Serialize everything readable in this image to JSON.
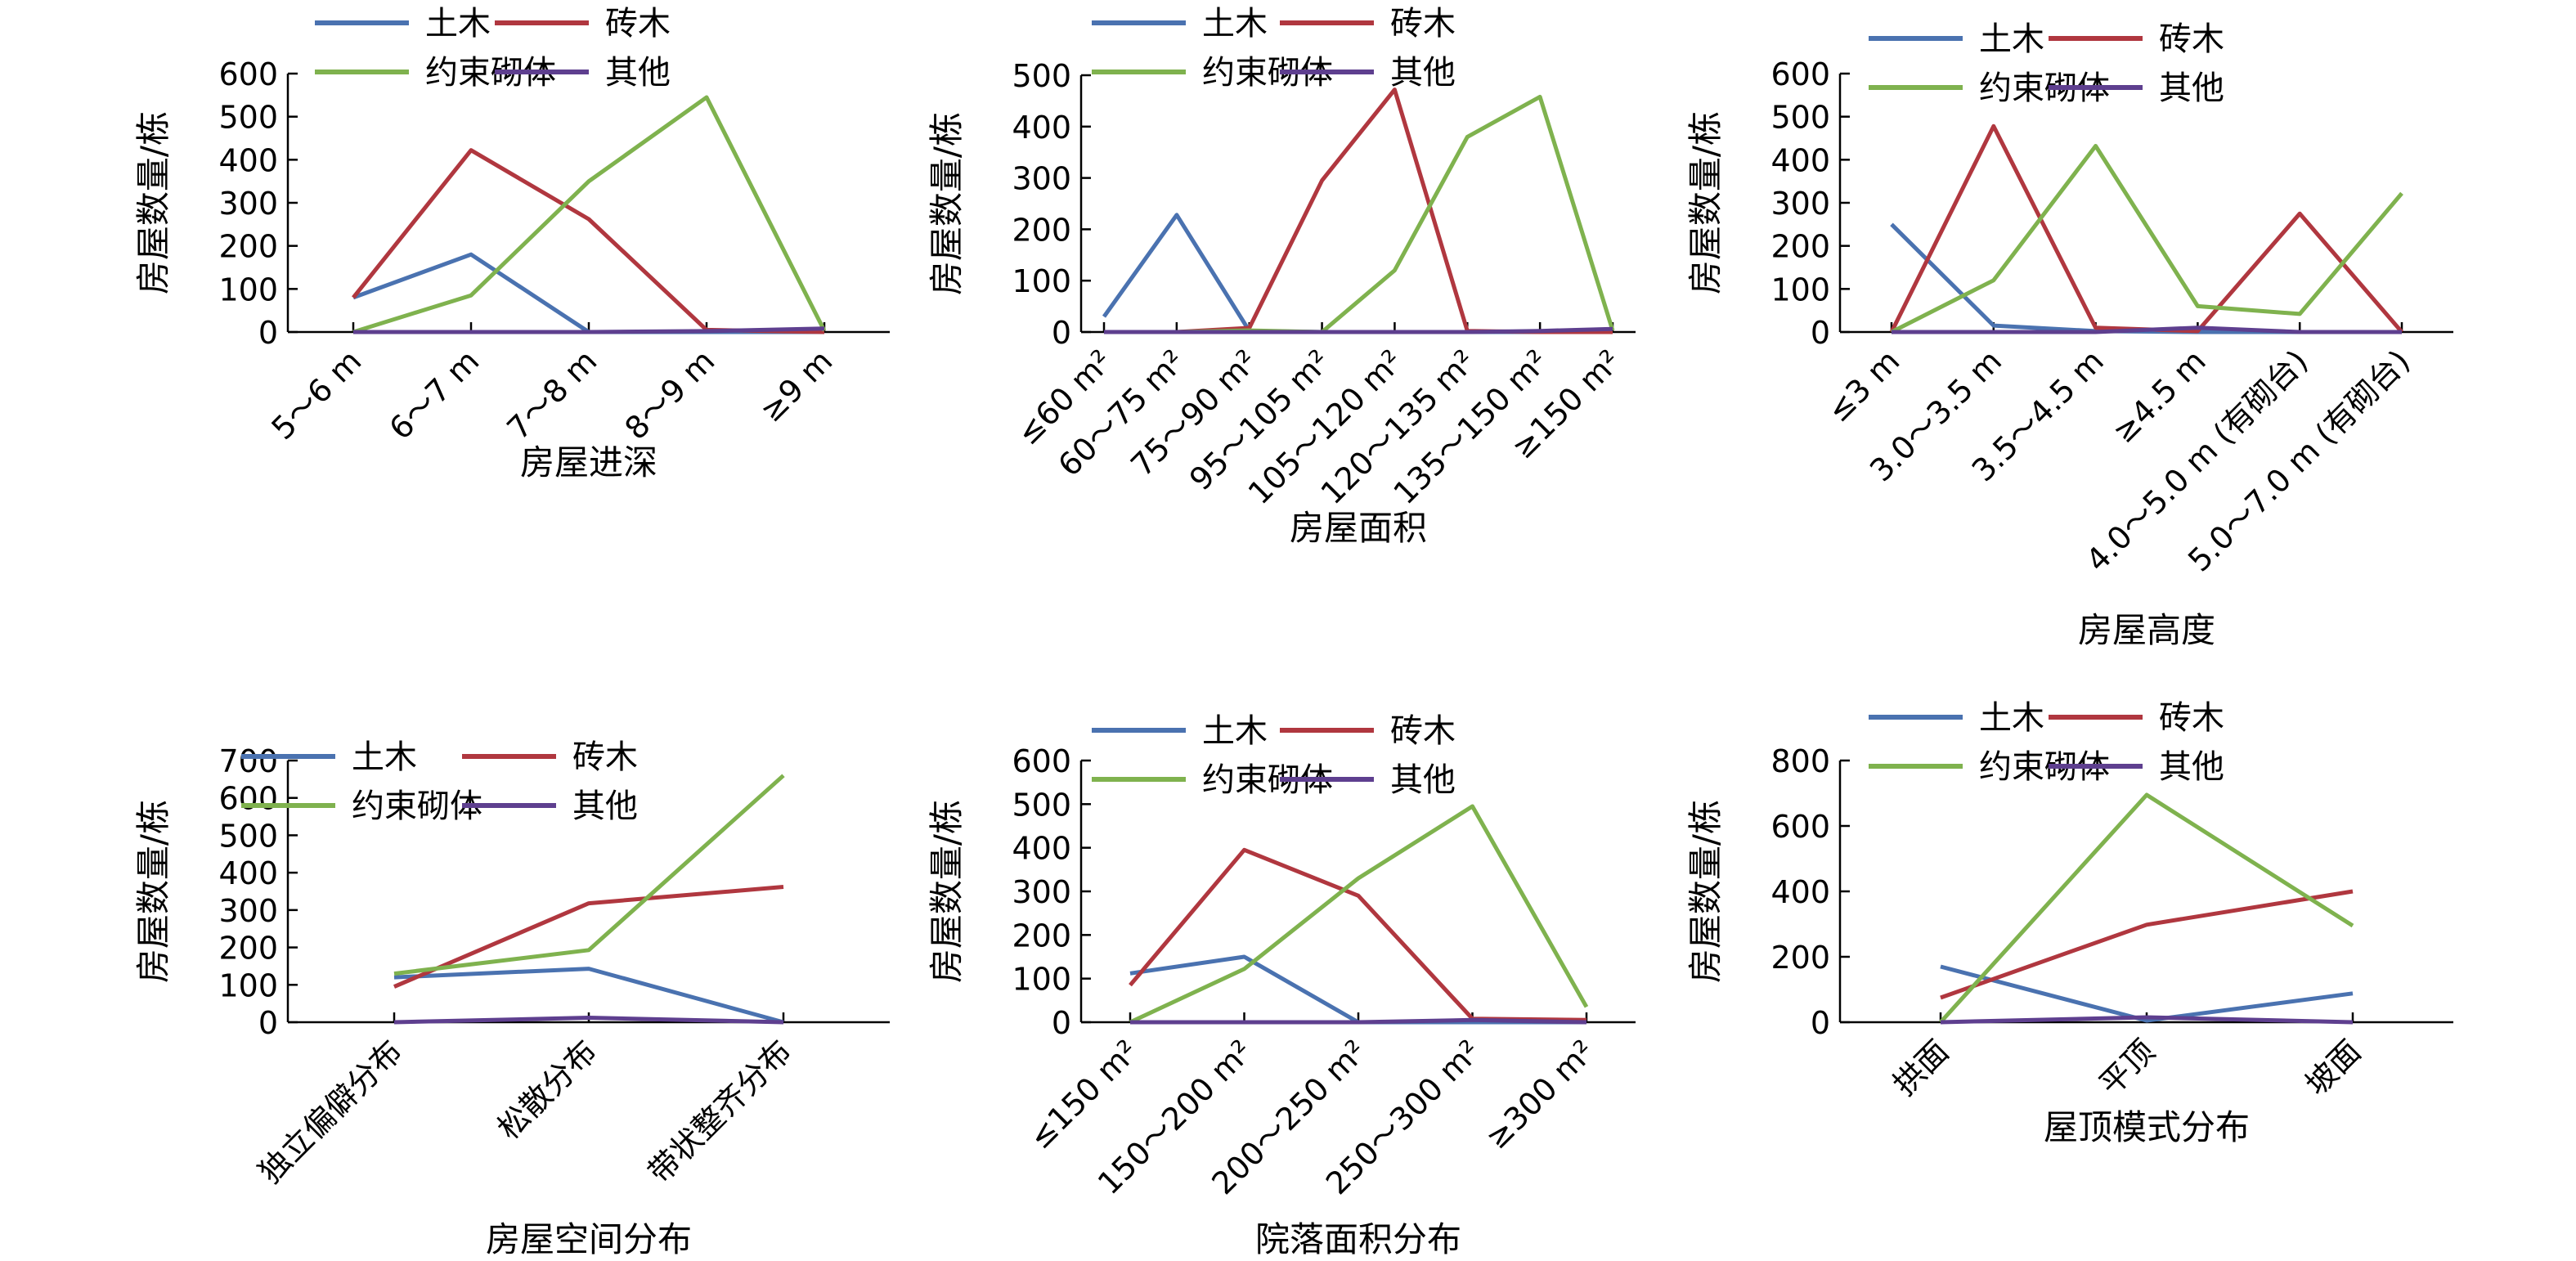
{
  "colors": {
    "tumu": "#4a72b0",
    "zhuanmu": "#b0373f",
    "yueshu": "#7fb24e",
    "qita": "#5e3f8f"
  },
  "chart_data": [
    {
      "type": "line",
      "xlabel": "房屋进深",
      "ylabel": "房屋数量/栋",
      "ylim": [
        0,
        600
      ],
      "yticks": [
        0,
        100,
        200,
        300,
        400,
        500,
        600
      ],
      "categories": [
        "5～6 m",
        "6～7 m",
        "7～8 m",
        "8～9 m",
        "≥9 m"
      ],
      "legend": "top",
      "series": [
        {
          "name": "土木",
          "color": "#4a72b0",
          "values": [
            80,
            180,
            0,
            0,
            0
          ]
        },
        {
          "name": "砖木",
          "color": "#b0373f",
          "values": [
            80,
            422,
            262,
            5,
            0
          ]
        },
        {
          "name": "约束砌体",
          "color": "#7fb24e",
          "values": [
            0,
            85,
            350,
            545,
            3
          ]
        },
        {
          "name": "其他",
          "color": "#5e3f8f",
          "values": [
            0,
            0,
            0,
            2,
            8
          ]
        }
      ]
    },
    {
      "type": "line",
      "xlabel": "房屋面积",
      "ylabel": "房屋数量/栋",
      "ylim": [
        0,
        500
      ],
      "yticks": [
        0,
        100,
        200,
        300,
        400,
        500
      ],
      "categories": [
        "≤60 m²",
        "60～75 m²",
        "75～90 m²",
        "95～105 m²",
        "105～120 m²",
        "120～135 m²",
        "135～150 m²",
        "≥150 m²"
      ],
      "legend": "top",
      "series": [
        {
          "name": "土木",
          "color": "#4a72b0",
          "values": [
            30,
            228,
            2,
            0,
            0,
            0,
            0,
            0
          ]
        },
        {
          "name": "砖木",
          "color": "#b0373f",
          "values": [
            0,
            0,
            8,
            295,
            472,
            2,
            0,
            0
          ]
        },
        {
          "name": "约束砌体",
          "color": "#7fb24e",
          "values": [
            0,
            0,
            3,
            0,
            120,
            380,
            458,
            3
          ]
        },
        {
          "name": "其他",
          "color": "#5e3f8f",
          "values": [
            0,
            0,
            0,
            0,
            0,
            0,
            2,
            6
          ]
        }
      ]
    },
    {
      "type": "line",
      "xlabel": "房屋高度",
      "ylabel": "房屋数量/栋",
      "ylim": [
        0,
        600
      ],
      "yticks": [
        0,
        100,
        200,
        300,
        400,
        500,
        600
      ],
      "categories": [
        "≤3 m",
        "3.0～3.5 m",
        "3.5～4.5 m",
        "≥4.5 m",
        "4.0～5.0 m (有砌台)",
        "5.0～7.0 m (有砌台)"
      ],
      "legend": "top",
      "series": [
        {
          "name": "土木",
          "color": "#4a72b0",
          "values": [
            250,
            15,
            2,
            0,
            0,
            0
          ]
        },
        {
          "name": "砖木",
          "color": "#b0373f",
          "values": [
            0,
            478,
            10,
            2,
            275,
            0
          ]
        },
        {
          "name": "约束砌体",
          "color": "#7fb24e",
          "values": [
            0,
            120,
            432,
            60,
            42,
            322
          ]
        },
        {
          "name": "其他",
          "color": "#5e3f8f",
          "values": [
            0,
            0,
            0,
            10,
            0,
            0
          ]
        }
      ]
    },
    {
      "type": "line",
      "xlabel": "房屋空间分布",
      "ylabel": "房屋数量/栋",
      "ylim": [
        0,
        700
      ],
      "yticks": [
        0,
        100,
        200,
        300,
        400,
        500,
        600,
        700
      ],
      "categories": [
        "独立偏僻分布",
        "松散分布",
        "带状整齐分布"
      ],
      "legend": "top",
      "series": [
        {
          "name": "土木",
          "color": "#4a72b0",
          "values": [
            120,
            143,
            0
          ]
        },
        {
          "name": "砖木",
          "color": "#b0373f",
          "values": [
            95,
            318,
            362
          ]
        },
        {
          "name": "约束砌体",
          "color": "#7fb24e",
          "values": [
            130,
            193,
            660
          ]
        },
        {
          "name": "其他",
          "color": "#5e3f8f",
          "values": [
            0,
            12,
            0
          ]
        }
      ]
    },
    {
      "type": "line",
      "xlabel": "院落面积分布",
      "ylabel": "房屋数量/栋",
      "ylim": [
        0,
        600
      ],
      "yticks": [
        0,
        100,
        200,
        300,
        400,
        500,
        600
      ],
      "categories": [
        "≤150 m²",
        "150～200 m²",
        "200～250 m²",
        "250～300 m²",
        "≥300 m²"
      ],
      "legend": "top",
      "series": [
        {
          "name": "土木",
          "color": "#4a72b0",
          "values": [
            112,
            150,
            0,
            0,
            0
          ]
        },
        {
          "name": "砖木",
          "color": "#b0373f",
          "values": [
            85,
            395,
            290,
            8,
            5
          ]
        },
        {
          "name": "约束砌体",
          "color": "#7fb24e",
          "values": [
            0,
            122,
            330,
            495,
            35
          ]
        },
        {
          "name": "其他",
          "color": "#5e3f8f",
          "values": [
            0,
            0,
            0,
            5,
            0
          ]
        }
      ]
    },
    {
      "type": "line",
      "xlabel": "屋顶模式分布",
      "ylabel": "房屋数量/栋",
      "ylim": [
        0,
        800
      ],
      "yticks": [
        0,
        200,
        400,
        600,
        800
      ],
      "categories": [
        "拱面",
        "平顶",
        "坡面"
      ],
      "legend": "top",
      "series": [
        {
          "name": "土木",
          "color": "#4a72b0",
          "values": [
            170,
            5,
            88
          ]
        },
        {
          "name": "砖木",
          "color": "#b0373f",
          "values": [
            75,
            298,
            400
          ]
        },
        {
          "name": "约束砌体",
          "color": "#7fb24e",
          "values": [
            0,
            695,
            295
          ]
        },
        {
          "name": "其他",
          "color": "#5e3f8f",
          "values": [
            0,
            15,
            0
          ]
        }
      ]
    }
  ]
}
